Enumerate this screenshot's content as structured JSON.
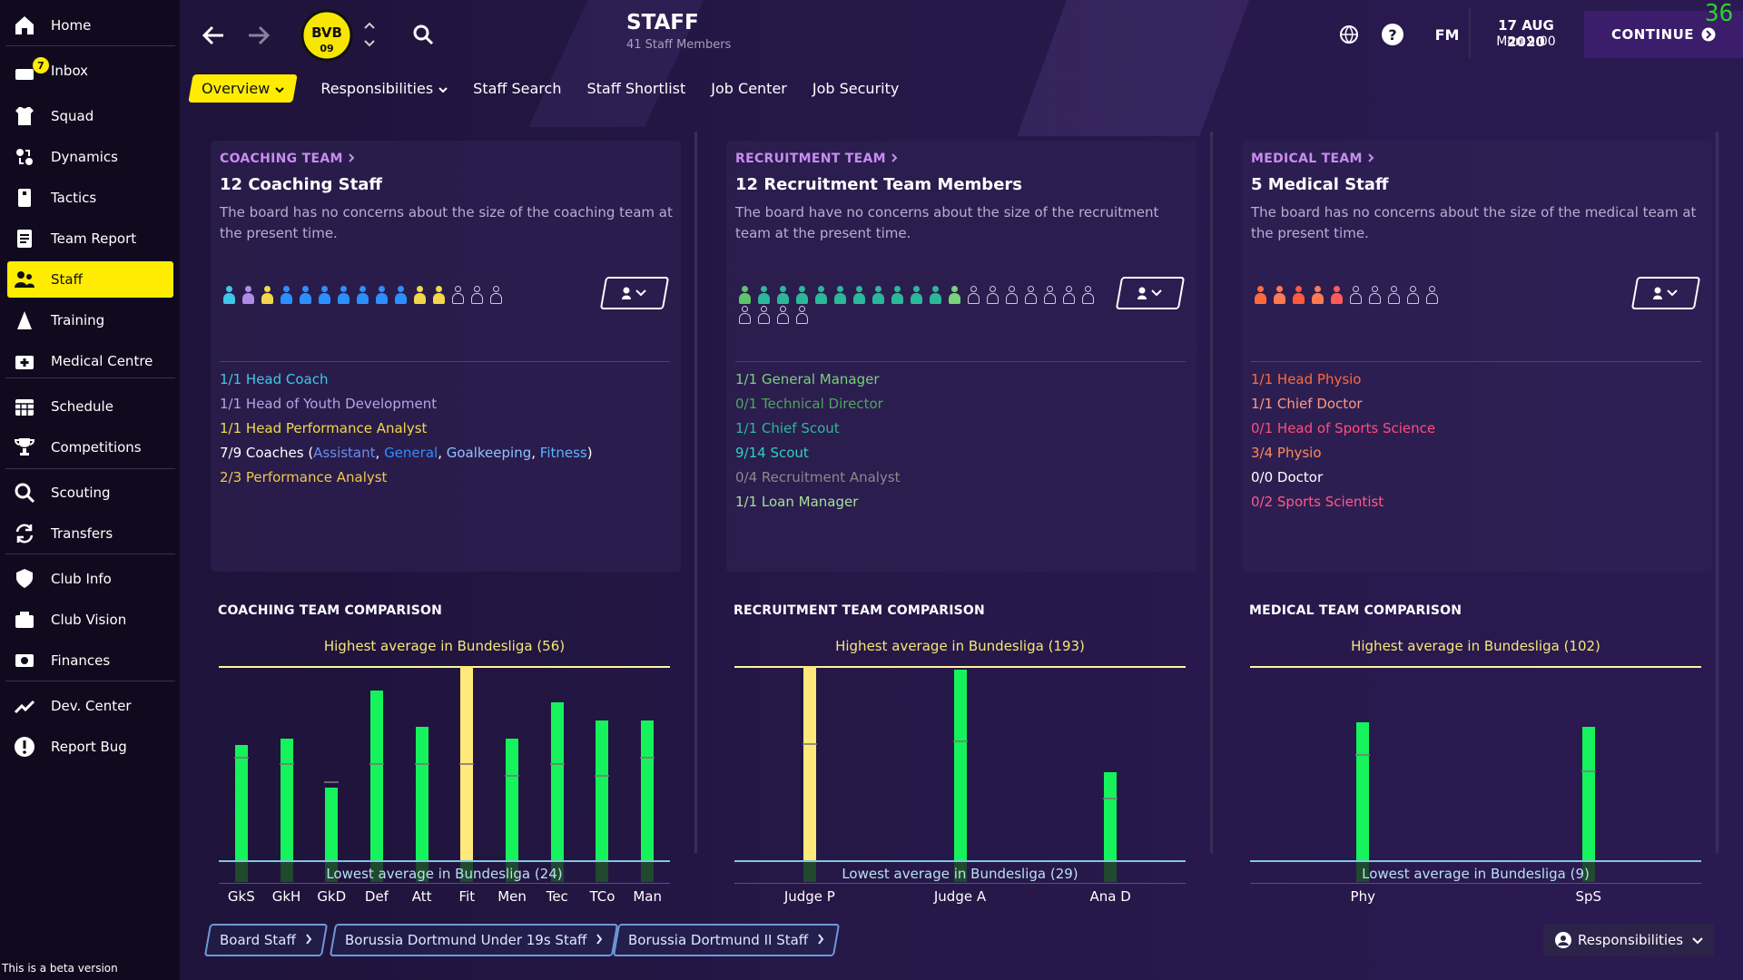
{
  "sidebar": {
    "items": [
      {
        "label": "Home",
        "icon": "home-icon"
      },
      {
        "label": "Inbox",
        "icon": "inbox-icon",
        "badge": "7"
      },
      {
        "label": "Squad",
        "icon": "shirt-icon"
      },
      {
        "label": "Dynamics",
        "icon": "dynamics-icon"
      },
      {
        "label": "Tactics",
        "icon": "tactics-icon"
      },
      {
        "label": "Team Report",
        "icon": "report-icon"
      },
      {
        "label": "Staff",
        "icon": "staff-icon",
        "active": true
      },
      {
        "label": "Training",
        "icon": "training-icon"
      },
      {
        "label": "Medical Centre",
        "icon": "medical-icon"
      },
      {
        "label": "Schedule",
        "icon": "calendar-icon"
      },
      {
        "label": "Competitions",
        "icon": "trophy-icon"
      },
      {
        "label": "Scouting",
        "icon": "magnifier-icon"
      },
      {
        "label": "Transfers",
        "icon": "transfer-icon"
      },
      {
        "label": "Club Info",
        "icon": "shield-icon"
      },
      {
        "label": "Club Vision",
        "icon": "vision-icon"
      },
      {
        "label": "Finances",
        "icon": "money-icon"
      },
      {
        "label": "Dev. Center",
        "icon": "dev-icon"
      },
      {
        "label": "Report Bug",
        "icon": "bug-icon"
      }
    ],
    "beta": "This is a beta version"
  },
  "header": {
    "title": "STAFF",
    "subtitle": "41 Staff Members",
    "fm": "FM",
    "date": "17 AUG 2020",
    "time": "Mon 9:00",
    "continue": "CONTINUE",
    "fps": "36",
    "club_logo_text": "BVB 09"
  },
  "tabs": [
    {
      "label": "Overview",
      "active": true
    },
    {
      "label": "Responsibilities"
    },
    {
      "label": "Staff Search"
    },
    {
      "label": "Staff Shortlist"
    },
    {
      "label": "Job Center"
    },
    {
      "label": "Job Security"
    }
  ],
  "cards": [
    {
      "head": "COACHING TEAM",
      "title": "12 Coaching Staff",
      "desc": "The board has no concerns about the size of the coaching team at the present time.",
      "people": [
        "#3ec7e6",
        "#b08ae8",
        "#f1d84b",
        "#2b8fff",
        "#2b8fff",
        "#2b8fff",
        "#2b8fff",
        "#2b8fff",
        "#2b8fff",
        "#2b8fff",
        "#f1d84b",
        "#f1d84b",
        "",
        "",
        ""
      ],
      "roles": [
        {
          "parts": [
            {
              "t": "1/1 Head Coach",
              "c": "#3ec7e6"
            }
          ]
        },
        {
          "parts": [
            {
              "t": "1/1 Head of Youth Development",
              "c": "#b8a3e3"
            }
          ]
        },
        {
          "parts": [
            {
              "t": "1/1 Head Performance Analyst",
              "c": "#f1d84b"
            }
          ]
        },
        {
          "parts": [
            {
              "t": "7/9 Coaches (",
              "c": "#ffffff"
            },
            {
              "t": "Assistant",
              "c": "#6b8df0"
            },
            {
              "t": ", ",
              "c": "#ffffff"
            },
            {
              "t": "General",
              "c": "#2b8fff"
            },
            {
              "t": ", ",
              "c": "#ffffff"
            },
            {
              "t": "Goalkeeping",
              "c": "#8ec2ff"
            },
            {
              "t": ", ",
              "c": "#ffffff"
            },
            {
              "t": "Fitness",
              "c": "#5bb5ff"
            },
            {
              "t": ")",
              "c": "#ffffff"
            }
          ]
        },
        {
          "parts": [
            {
              "t": "2/3 Performance Analyst",
              "c": "#f1c84b"
            }
          ]
        }
      ]
    },
    {
      "head": "RECRUITMENT TEAM",
      "title": "12 Recruitment Team Members",
      "desc": "The board have no concerns about the size of the recruitment team at the present time.",
      "people": [
        "#5ec46a",
        "#2bb89a",
        "#2bb89a",
        "#2bb89a",
        "#2bb89a",
        "#2bb89a",
        "#2bb89a",
        "#2bb89a",
        "#2bb89a",
        "#2bb89a",
        "#2bb89a",
        "#7ad17a",
        "",
        "",
        "",
        "",
        "",
        "",
        "",
        "",
        "",
        "",
        ""
      ],
      "roles": [
        {
          "parts": [
            {
              "t": "1/1 General Manager",
              "c": "#7ad17a"
            }
          ]
        },
        {
          "parts": [
            {
              "t": "0/1 Technical Director",
              "c": "#4fa55d"
            }
          ]
        },
        {
          "parts": [
            {
              "t": "1/1 Chief Scout",
              "c": "#2bb89a"
            }
          ]
        },
        {
          "parts": [
            {
              "t": "9/14 Scout",
              "c": "#2fcfc0"
            }
          ]
        },
        {
          "parts": [
            {
              "t": "0/4 Recruitment Analyst",
              "c": "#8a8a8a"
            }
          ]
        },
        {
          "parts": [
            {
              "t": "1/1 Loan Manager",
              "c": "#a6e09a"
            }
          ]
        }
      ]
    },
    {
      "head": "MEDICAL TEAM",
      "title": "5 Medical Staff",
      "desc": "The board has no concerns about the size of the medical team at the present time.",
      "people": [
        "#ff6a3d",
        "#ff7a4f",
        "#ff5a3d",
        "#ff7a4f",
        "#ff5a5a",
        "",
        "",
        "",
        "",
        ""
      ],
      "roles": [
        {
          "parts": [
            {
              "t": "1/1 Head Physio",
              "c": "#ff6a3d"
            }
          ]
        },
        {
          "parts": [
            {
              "t": "1/1 Chief Doctor",
              "c": "#ff9a80"
            }
          ]
        },
        {
          "parts": [
            {
              "t": "0/1 Head of Sports Science",
              "c": "#ff4d7a"
            }
          ]
        },
        {
          "parts": [
            {
              "t": "3/4 Physio",
              "c": "#ff8a5a"
            }
          ]
        },
        {
          "parts": [
            {
              "t": "0/0 Doctor",
              "c": "#ffffff"
            }
          ]
        },
        {
          "parts": [
            {
              "t": "0/2 Sports Scientist",
              "c": "#ff5a8a"
            }
          ]
        }
      ]
    }
  ],
  "comparisons": [
    {
      "title": "COACHING TEAM COMPARISON",
      "high_label": "Highest average in Bundesliga (56)",
      "low_label": "Lowest average in Bundesliga (24)"
    },
    {
      "title": "RECRUITMENT TEAM COMPARISON",
      "high_label": "Highest average in Bundesliga (193)",
      "low_label": "Lowest average in Bundesliga (29)"
    },
    {
      "title": "MEDICAL TEAM COMPARISON",
      "high_label": "Highest average in Bundesliga (102)",
      "low_label": "Lowest average in Bundesliga (9)"
    }
  ],
  "chart_data": [
    {
      "type": "bar",
      "title": "COACHING TEAM COMPARISON",
      "categories": [
        "GkS",
        "GkH",
        "GkD",
        "Def",
        "Att",
        "Fit",
        "Men",
        "Tec",
        "TCo",
        "Man"
      ],
      "values": [
        43,
        44,
        36,
        52,
        46,
        56,
        44,
        50,
        47,
        47
      ],
      "averages": [
        41,
        40,
        37,
        40,
        40,
        40,
        38,
        40,
        38,
        41
      ],
      "ylim": [
        24,
        56
      ],
      "highlight": "Fit"
    },
    {
      "type": "bar",
      "title": "RECRUITMENT TEAM COMPARISON",
      "categories": [
        "Judge P",
        "Judge A",
        "Ana D"
      ],
      "values": [
        193,
        190,
        103
      ],
      "averages": [
        128,
        130,
        82
      ],
      "ylim": [
        29,
        193
      ],
      "highlight": "Judge P"
    },
    {
      "type": "bar",
      "title": "MEDICAL TEAM COMPARISON",
      "categories": [
        "Phy",
        "SpS"
      ],
      "values": [
        75,
        73
      ],
      "averages": [
        60,
        52
      ],
      "ylim": [
        9,
        102
      ]
    }
  ],
  "bottom": {
    "buttons": [
      "Board Staff",
      "Borussia Dortmund Under 19s Staff",
      "Borussia Dortmund II Staff"
    ],
    "responsibilities": "Responsibilities"
  }
}
